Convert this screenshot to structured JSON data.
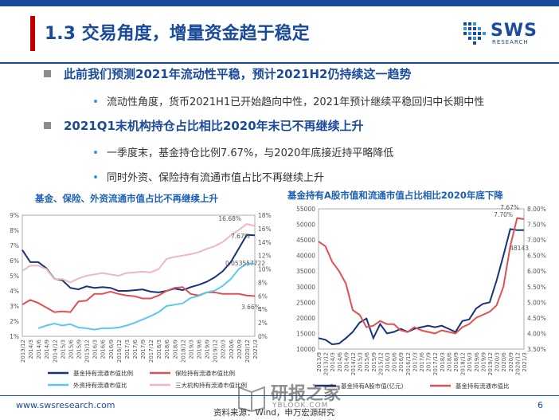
{
  "header": {
    "title": "1.3 交易角度，增量资金趋于稳定",
    "logo_text": "SWS",
    "logo_sub": "RESEARCH"
  },
  "bullets": [
    {
      "level": 1,
      "text": "此前我们预测2021年流动性平稳，预计2021H2仍持续这一趋势"
    },
    {
      "level": 2,
      "text": "流动性角度，货币2021H1已开始趋向中性，2021年预计继续平稳回归中长期中性"
    },
    {
      "level": 1,
      "text": "2021Q1末机构持仓占比相比2020年末已不再继续上升"
    },
    {
      "level": 2,
      "text": "一季度末，基金持仓比例7.67%，与2020年底接近持平略降低"
    },
    {
      "level": 2,
      "text": "同时外资、保险持有流通市值占比不再继续上升"
    }
  ],
  "chart_titles": {
    "left": "基金、保险、外资流通市值占比不再继续上升",
    "right": "基金持有A股市值和流通市值占比相比2020年底下降"
  },
  "chart_data": [
    {
      "type": "line",
      "x": [
        "2013/12",
        "2014/3",
        "2014/6",
        "2014/9",
        "2014/12",
        "2015/3",
        "2015/6",
        "2015/9",
        "2015/12",
        "2016/3",
        "2016/6",
        "2016/9",
        "2016/12",
        "2017/3",
        "2017/6",
        "2017/9",
        "2017/12",
        "2018/3",
        "2018/6",
        "2018/9",
        "2018/12",
        "2019/3",
        "2019/6",
        "2019/9",
        "2019/12",
        "2020/3",
        "2020/6",
        "2020/9",
        "2020/12",
        "2021/3"
      ],
      "y_left_ticks": [
        "1%",
        "2%",
        "3%",
        "4%",
        "5%",
        "6%",
        "7%",
        "8%",
        "9%"
      ],
      "y_right_ticks": [
        "0%",
        "2%",
        "4%",
        "6%",
        "8%",
        "10%",
        "12%",
        "14%",
        "16%",
        "18%"
      ],
      "ylim_left": [
        1,
        9
      ],
      "ylim_right": [
        0,
        18
      ],
      "series": [
        {
          "name": "基金持有流通市值比例",
          "axis": "left",
          "color": "#17337a",
          "values": [
            6.7,
            5.9,
            5.9,
            5.5,
            4.8,
            4.7,
            4.2,
            4.1,
            4.3,
            4.2,
            4.25,
            4.2,
            4.0,
            4.0,
            4.05,
            4.1,
            3.95,
            3.9,
            4.0,
            4.15,
            4.05,
            4.25,
            4.4,
            4.6,
            4.9,
            5.3,
            5.9,
            6.8,
            7.7,
            7.67
          ]
        },
        {
          "name": "保险持有流通市值比例",
          "axis": "left",
          "color": "#e05050",
          "values": [
            3.1,
            3.4,
            3.2,
            2.9,
            2.6,
            2.65,
            2.6,
            3.3,
            3.35,
            3.8,
            3.8,
            3.95,
            3.8,
            3.7,
            3.65,
            3.5,
            3.5,
            3.7,
            4.0,
            4.2,
            4.25,
            3.8,
            3.7,
            3.9,
            3.9,
            3.8,
            3.8,
            3.8,
            3.7,
            3.66
          ]
        },
        {
          "name": "外资持有流通市值比",
          "axis": "right",
          "color": "#5bc8f0",
          "values": [
            null,
            null,
            1.2,
            1.6,
            1.9,
            1.6,
            1.8,
            1.3,
            1.2,
            1.0,
            1.2,
            1.2,
            1.3,
            1.6,
            2.0,
            2.5,
            3.0,
            3.6,
            4.5,
            4.7,
            4.9,
            5.7,
            6.0,
            6.5,
            6.8,
            7.5,
            8.5,
            10.0,
            10.8,
            10.8
          ]
        },
        {
          "name": "三大机构持有流通市值比例",
          "axis": "right",
          "color": "#f0b7c0",
          "values": [
            9.7,
            10.5,
            10.5,
            10.0,
            8.5,
            8.5,
            8.0,
            8.6,
            9.0,
            9.2,
            9.4,
            9.2,
            9.0,
            9.4,
            9.5,
            9.6,
            9.5,
            10.0,
            11.5,
            11.8,
            12.0,
            12.2,
            12.5,
            13.0,
            13.4,
            14.0,
            15.0,
            15.8,
            16.68,
            16.4
          ]
        }
      ],
      "annotations": [
        "16.68%",
        "7.67%",
        "0.053557722",
        "3.66%"
      ]
    },
    {
      "type": "line",
      "x": [
        "2013/9",
        "2013/12",
        "2014/3",
        "2014/6",
        "2014/9",
        "2014/12",
        "2015/3",
        "2015/6",
        "2015/9",
        "2015/12",
        "2016/3",
        "2016/6",
        "2016/9",
        "2016/12",
        "2017/3",
        "2017/6",
        "2017/9",
        "2017/12",
        "2018/3",
        "2018/6",
        "2018/9",
        "2018/12",
        "2019/3",
        "2019/6",
        "2019/9",
        "2019/12",
        "2020/3",
        "2020/6",
        "2020/9",
        "2020/12",
        "2021/3"
      ],
      "y_left_ticks": [
        "10000",
        "15000",
        "20000",
        "25000",
        "30000",
        "35000",
        "40000",
        "45000",
        "50000",
        "55000"
      ],
      "y_right_ticks": [
        "3.50%",
        "4.00%",
        "4.50%",
        "5.00%",
        "5.50%",
        "6.00%",
        "6.50%",
        "7.00%",
        "7.50%",
        "8.00%"
      ],
      "ylim_left": [
        10000,
        55000
      ],
      "ylim_right": [
        3.5,
        8.0
      ],
      "series": [
        {
          "name": "基金持有A股市值(亿元)",
          "axis": "left",
          "color": "#17337a",
          "values": [
            13500,
            13000,
            11500,
            11800,
            13500,
            15500,
            18500,
            19800,
            13500,
            18000,
            15000,
            15500,
            16500,
            15500,
            16500,
            17000,
            17500,
            17000,
            17500,
            16500,
            15500,
            19000,
            19500,
            23000,
            24500,
            25000,
            32000,
            40000,
            48500,
            48143,
            48143
          ]
        },
        {
          "name": "基金持有流通市值比",
          "axis": "right",
          "color": "#e05050",
          "values": [
            6.95,
            6.8,
            6.3,
            6.0,
            5.6,
            4.75,
            4.6,
            4.2,
            4.25,
            4.4,
            4.3,
            4.3,
            4.1,
            4.05,
            4.2,
            4.1,
            4.05,
            4.0,
            4.1,
            4.05,
            4.0,
            4.2,
            4.3,
            4.5,
            4.6,
            4.7,
            4.9,
            5.5,
            6.8,
            7.7,
            7.67
          ]
        }
      ],
      "annotations": [
        "7.70%",
        "7.67%",
        "48143"
      ]
    }
  ],
  "footer": {
    "url": "www.swsresearch.com",
    "source": "资料来源：Wind，申万宏源研究",
    "page": "6",
    "watermark_cn": "研报之家",
    "watermark_en": "YBLOOK.COM"
  }
}
